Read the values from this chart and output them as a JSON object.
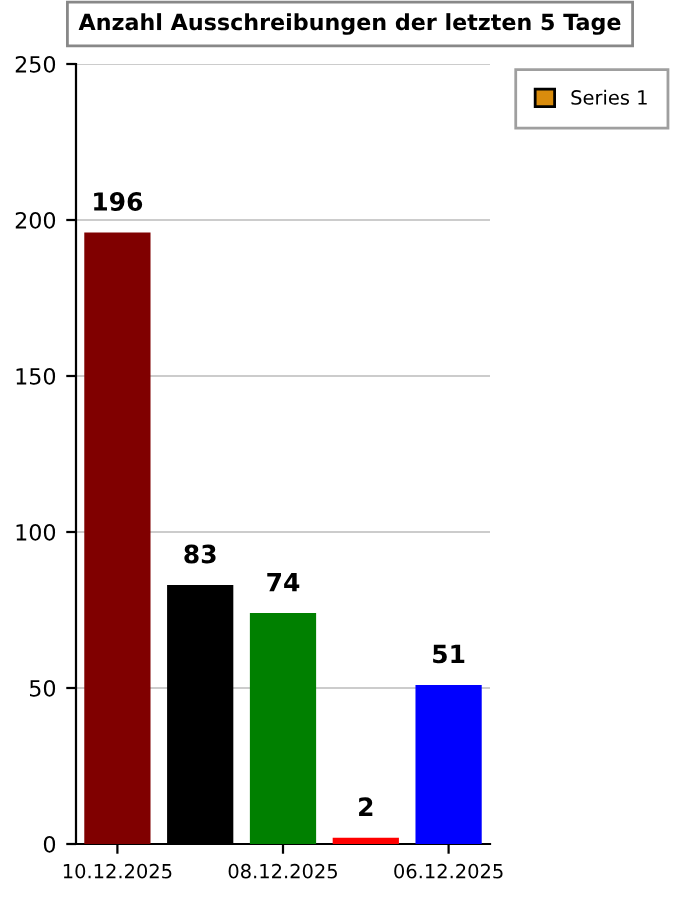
{
  "chart_data": {
    "type": "bar",
    "title": "Anzahl Ausschreibungen der letzten 5 Tage",
    "categories": [
      "10.12.2025",
      null,
      "08.12.2025",
      null,
      "06.12.2025"
    ],
    "series": [
      {
        "name": "Series 1",
        "color": "#d98c0d",
        "colors": [
          "#800000",
          "#000000",
          "#008000",
          "#ff0000",
          "#0000ff"
        ],
        "values": [
          196,
          83,
          74,
          2,
          51
        ]
      }
    ],
    "ylim": [
      0,
      250
    ],
    "yticks": [
      0,
      50,
      100,
      150,
      200,
      250
    ],
    "grid": "y",
    "legend": "top right",
    "data_labels": true
  }
}
